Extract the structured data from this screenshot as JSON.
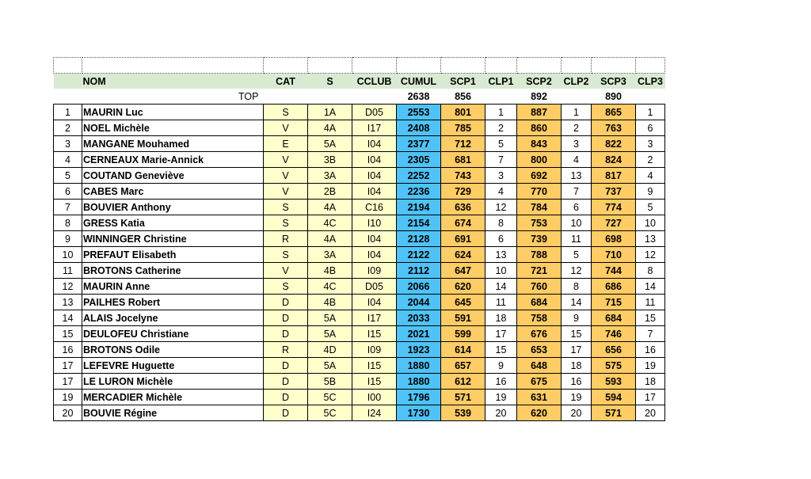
{
  "table": {
    "headers": [
      "NOM",
      "CAT",
      "S",
      "CCLUB",
      "CUMUL",
      "SCP1",
      "CLP1",
      "SCP2",
      "CLP2",
      "SCP3",
      "CLP3"
    ],
    "top": {
      "label": "TOP",
      "cumul": "2638",
      "scp1": "856",
      "scp2": "892",
      "scp3": "890"
    },
    "rows": [
      [
        "1",
        "MAURIN Luc",
        "S",
        "1A",
        "D05",
        "2553",
        "801",
        "1",
        "887",
        "1",
        "865",
        "1"
      ],
      [
        "2",
        "NOEL Michèle",
        "V",
        "4A",
        "I17",
        "2408",
        "785",
        "2",
        "860",
        "2",
        "763",
        "6"
      ],
      [
        "3",
        "MANGANE Mouhamed",
        "E",
        "5A",
        "I04",
        "2377",
        "712",
        "5",
        "843",
        "3",
        "822",
        "3"
      ],
      [
        "4",
        "CERNEAUX Marie-Annick",
        "V",
        "3B",
        "I04",
        "2305",
        "681",
        "7",
        "800",
        "4",
        "824",
        "2"
      ],
      [
        "5",
        "COUTAND Geneviève",
        "V",
        "3A",
        "I04",
        "2252",
        "743",
        "3",
        "692",
        "13",
        "817",
        "4"
      ],
      [
        "6",
        "CABES Marc",
        "V",
        "2B",
        "I04",
        "2236",
        "729",
        "4",
        "770",
        "7",
        "737",
        "9"
      ],
      [
        "7",
        "BOUVIER Anthony",
        "S",
        "4A",
        "C16",
        "2194",
        "636",
        "12",
        "784",
        "6",
        "774",
        "5"
      ],
      [
        "8",
        "GRESS Katia",
        "S",
        "4C",
        "I10",
        "2154",
        "674",
        "8",
        "753",
        "10",
        "727",
        "10"
      ],
      [
        "9",
        "WINNINGER Christine",
        "R",
        "4A",
        "I04",
        "2128",
        "691",
        "6",
        "739",
        "11",
        "698",
        "13"
      ],
      [
        "10",
        "PREFAUT Elisabeth",
        "S",
        "3A",
        "I04",
        "2122",
        "624",
        "13",
        "788",
        "5",
        "710",
        "12"
      ],
      [
        "11",
        "BROTONS Catherine",
        "V",
        "4B",
        "I09",
        "2112",
        "647",
        "10",
        "721",
        "12",
        "744",
        "8"
      ],
      [
        "12",
        "MAURIN Anne",
        "S",
        "4C",
        "D05",
        "2066",
        "620",
        "14",
        "760",
        "8",
        "686",
        "14"
      ],
      [
        "13",
        "PAILHES Robert",
        "D",
        "4B",
        "I04",
        "2044",
        "645",
        "11",
        "684",
        "14",
        "715",
        "11"
      ],
      [
        "14",
        "ALAIS Jocelyne",
        "D",
        "5A",
        "I17",
        "2033",
        "591",
        "18",
        "758",
        "9",
        "684",
        "15"
      ],
      [
        "15",
        "DEULOFEU Christiane",
        "D",
        "5A",
        "I15",
        "2021",
        "599",
        "17",
        "676",
        "15",
        "746",
        "7"
      ],
      [
        "16",
        "BROTONS Odile",
        "R",
        "4D",
        "I09",
        "1923",
        "614",
        "15",
        "653",
        "17",
        "656",
        "16"
      ],
      [
        "17",
        "LEFEVRE Huguette",
        "D",
        "5A",
        "I15",
        "1880",
        "657",
        "9",
        "648",
        "18",
        "575",
        "19"
      ],
      [
        "17",
        "LE LURON Michèle",
        "D",
        "5B",
        "I15",
        "1880",
        "612",
        "16",
        "675",
        "16",
        "593",
        "18"
      ],
      [
        "19",
        "MERCADIER Michèle",
        "D",
        "5C",
        "I00",
        "1796",
        "571",
        "19",
        "631",
        "19",
        "594",
        "17"
      ],
      [
        "20",
        "BOUVIE Régine",
        "D",
        "5C",
        "I24",
        "1730",
        "539",
        "20",
        "620",
        "20",
        "571",
        "20"
      ]
    ]
  }
}
